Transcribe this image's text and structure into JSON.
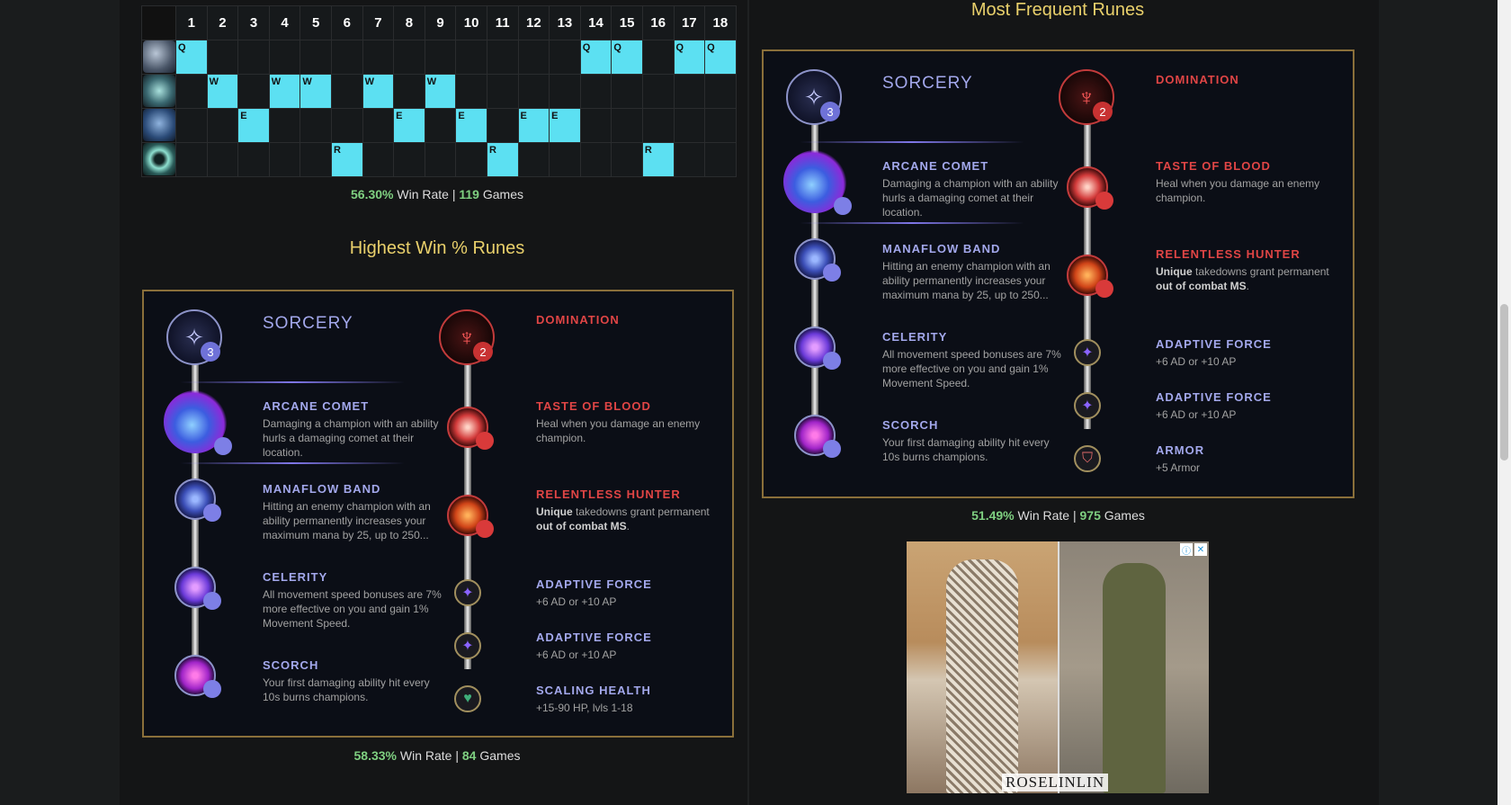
{
  "skill_order": {
    "levels": [
      "1",
      "2",
      "3",
      "4",
      "5",
      "6",
      "7",
      "8",
      "9",
      "10",
      "11",
      "12",
      "13",
      "14",
      "15",
      "16",
      "17",
      "18"
    ],
    "rows": [
      {
        "key": "Q",
        "icon": "skill-q-icon",
        "levels": [
          1,
          14,
          15,
          17,
          18
        ]
      },
      {
        "key": "W",
        "icon": "skill-w-icon",
        "levels": [
          2,
          4,
          5,
          7,
          9
        ]
      },
      {
        "key": "E",
        "icon": "skill-e-icon",
        "levels": [
          3,
          8,
          10,
          12,
          13
        ]
      },
      {
        "key": "R",
        "icon": "skill-r-icon",
        "levels": [
          6,
          11,
          16
        ]
      }
    ],
    "stats": {
      "win_rate": "56.30%",
      "win_label": "Win Rate",
      "sep": "|",
      "games": "119",
      "games_label": "Games"
    }
  },
  "highest_win": {
    "title": "Highest Win % Runes",
    "primary_tree": {
      "name": "SORCERY",
      "badge": "3"
    },
    "secondary_tree": {
      "name": "DOMINATION",
      "badge": "2"
    },
    "primary_runes": [
      {
        "name": "ARCANE COMET",
        "desc": "Damaging a champion with an ability hurls a damaging comet at their location."
      },
      {
        "name": "MANAFLOW BAND",
        "desc": "Hitting an enemy champion with an ability permanently increases your maximum mana by 25, up to 250..."
      },
      {
        "name": "CELERITY",
        "desc": "All movement speed bonuses are 7% more effective on you and gain 1% Movement Speed."
      },
      {
        "name": "SCORCH",
        "desc": "Your first damaging ability hit every 10s burns champions."
      }
    ],
    "secondary_runes": [
      {
        "name": "TASTE OF BLOOD",
        "desc": "Heal when you damage an enemy champion."
      },
      {
        "name": "RELENTLESS HUNTER",
        "desc_b1": "Unique",
        "desc_mid": " takedowns grant permanent ",
        "desc_b2": "out of combat MS",
        "desc_end": "."
      }
    ],
    "shards": [
      {
        "name": "ADAPTIVE FORCE",
        "desc": "+6 AD or +10 AP",
        "icon": "adaptive-force-icon"
      },
      {
        "name": "ADAPTIVE FORCE",
        "desc": "+6 AD or +10 AP",
        "icon": "adaptive-force-icon"
      },
      {
        "name": "SCALING HEALTH",
        "desc": "+15-90 HP, lvls 1-18",
        "icon": "scaling-health-icon"
      }
    ],
    "stats": {
      "win_rate": "58.33%",
      "win_label": "Win Rate",
      "sep": "|",
      "games": "84",
      "games_label": "Games"
    }
  },
  "most_frequent": {
    "title": "Most Frequent Runes",
    "primary_tree": {
      "name": "SORCERY",
      "badge": "3"
    },
    "secondary_tree": {
      "name": "DOMINATION",
      "badge": "2"
    },
    "primary_runes": [
      {
        "name": "ARCANE COMET",
        "desc": "Damaging a champion with an ability hurls a damaging comet at their location."
      },
      {
        "name": "MANAFLOW BAND",
        "desc": "Hitting an enemy champion with an ability permanently increases your maximum mana by 25, up to 250..."
      },
      {
        "name": "CELERITY",
        "desc": "All movement speed bonuses are 7% more effective on you and gain 1% Movement Speed."
      },
      {
        "name": "SCORCH",
        "desc": "Your first damaging ability hit every 10s burns champions."
      }
    ],
    "secondary_runes": [
      {
        "name": "TASTE OF BLOOD",
        "desc": "Heal when you damage an enemy champion."
      },
      {
        "name": "RELENTLESS HUNTER",
        "desc_b1": "Unique",
        "desc_mid": " takedowns grant permanent ",
        "desc_b2": "out of combat MS",
        "desc_end": "."
      }
    ],
    "shards": [
      {
        "name": "ADAPTIVE FORCE",
        "desc": "+6 AD or +10 AP",
        "icon": "adaptive-force-icon"
      },
      {
        "name": "ADAPTIVE FORCE",
        "desc": "+6 AD or +10 AP",
        "icon": "adaptive-force-icon"
      },
      {
        "name": "ARMOR",
        "desc": "+5 Armor",
        "icon": "armor-shard-icon"
      }
    ],
    "stats": {
      "win_rate": "51.49%",
      "win_label": "Win Rate",
      "sep": "|",
      "games": "975",
      "games_label": "Games"
    }
  },
  "ad": {
    "brand": "ROSELINLIN",
    "info_icon": "ⓘ",
    "close_icon": "✕"
  },
  "colors": {
    "accent_gold": "#e9d06b",
    "win_green": "#7fd081",
    "sorcery": "#a3a8ec",
    "domination": "#e04545",
    "skill_cell": "#5ce0f2"
  }
}
